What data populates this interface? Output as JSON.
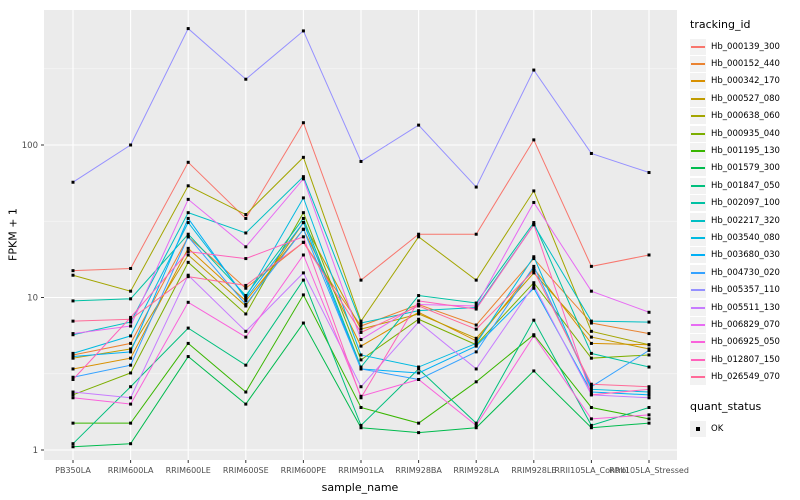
{
  "chart_data": {
    "type": "line",
    "title": "",
    "xlabel": "sample_name",
    "ylabel": "FPKM + 1",
    "yscale": "log10",
    "yticks": [
      1,
      10,
      100
    ],
    "ytick_labels": [
      "1",
      "10",
      "100"
    ],
    "ylim": [
      1,
      775
    ],
    "grid": "on",
    "legend_position": "right",
    "categories": [
      "PB350LA",
      "RRIM600LA",
      "RRIM600LE",
      "RRIM600SE",
      "RRIM600PE",
      "RRIM901LA",
      "RRIM928BA",
      "RRIM928LA",
      "RRIM928LE",
      "RRII105LA_Control",
      "RRII105LA_Stressed"
    ],
    "series": [
      {
        "name": "Hb_000139_300",
        "color": "#F8766D",
        "values": [
          15,
          15.5,
          77,
          33,
          140,
          13,
          26,
          26,
          108,
          16,
          19
        ]
      },
      {
        "name": "Hb_000152_440",
        "color": "#EA8331",
        "values": [
          4.2,
          5.0,
          25,
          11.5,
          23,
          6.5,
          9.0,
          6.6,
          18,
          6.8,
          5.8
        ]
      },
      {
        "name": "Hb_000342_170",
        "color": "#D89000",
        "values": [
          3.4,
          4.0,
          21,
          9.5,
          28,
          4.8,
          8.0,
          5.2,
          15.5,
          5.0,
          4.9
        ]
      },
      {
        "name": "Hb_000527_080",
        "color": "#C09B00",
        "values": [
          4.0,
          4.6,
          19,
          8.8,
          31,
          6.2,
          7.8,
          5.4,
          14.5,
          5.5,
          4.6
        ]
      },
      {
        "name": "Hb_000638_060",
        "color": "#A3A500",
        "values": [
          14,
          11,
          54,
          35,
          83,
          7.0,
          25,
          13,
          50,
          6.0,
          4.9
        ]
      },
      {
        "name": "Hb_000935_040",
        "color": "#7CAE00",
        "values": [
          2.3,
          3.2,
          17,
          7.8,
          36,
          3.9,
          7.2,
          4.9,
          12.5,
          4.0,
          4.2
        ]
      },
      {
        "name": "Hb_001195_130",
        "color": "#39B600",
        "values": [
          1.5,
          1.5,
          5.0,
          2.4,
          10.4,
          1.9,
          1.5,
          2.8,
          5.7,
          1.9,
          1.6
        ]
      },
      {
        "name": "Hb_001579_300",
        "color": "#00BB4E",
        "values": [
          1.05,
          1.1,
          4.1,
          2.0,
          6.8,
          1.4,
          1.3,
          1.4,
          3.3,
          1.4,
          1.5
        ]
      },
      {
        "name": "Hb_001847_050",
        "color": "#00BF7D",
        "values": [
          1.1,
          2.6,
          6.3,
          3.6,
          13,
          1.45,
          3.4,
          1.5,
          7.1,
          1.45,
          1.9
        ]
      },
      {
        "name": "Hb_002097_100",
        "color": "#00C1A3",
        "values": [
          9.5,
          9.8,
          26,
          10.3,
          33,
          3.5,
          10.3,
          9.2,
          31,
          4.3,
          3.5
        ]
      },
      {
        "name": "Hb_002217_320",
        "color": "#00BFC4",
        "values": [
          5.7,
          6.9,
          36,
          26.5,
          62,
          6.8,
          8.2,
          8.6,
          30,
          7.0,
          6.9
        ]
      },
      {
        "name": "Hb_003540_080",
        "color": "#00BAE0",
        "values": [
          4.3,
          5.6,
          31,
          10,
          45,
          4.2,
          3.5,
          5.0,
          18.5,
          2.5,
          2.4
        ]
      },
      {
        "name": "Hb_003680_030",
        "color": "#00B0F6",
        "values": [
          4.1,
          4.4,
          33,
          9.8,
          31,
          3.4,
          3.2,
          4.8,
          11.5,
          2.4,
          2.3
        ]
      },
      {
        "name": "Hb_004730_020",
        "color": "#35A2FF",
        "values": [
          3.0,
          3.6,
          25,
          9.0,
          28,
          3.4,
          2.9,
          4.4,
          16,
          2.6,
          4.5
        ]
      },
      {
        "name": "Hb_005357_110",
        "color": "#9590FF",
        "values": [
          57,
          100,
          580,
          270,
          560,
          78,
          135,
          53,
          310,
          88,
          66
        ]
      },
      {
        "name": "Hb_005511_130",
        "color": "#C77CFF",
        "values": [
          2.4,
          2.2,
          14,
          6.0,
          14.5,
          2.6,
          6.9,
          3.4,
          12,
          2.3,
          2.2
        ]
      },
      {
        "name": "Hb_006829_070",
        "color": "#E76BF3",
        "values": [
          5.8,
          6.5,
          44,
          21.5,
          60,
          5.3,
          9.0,
          8.8,
          42,
          11,
          8.0
        ]
      },
      {
        "name": "Hb_006925_050",
        "color": "#FA62DB",
        "values": [
          2.2,
          2.0,
          9.3,
          5.5,
          19,
          2.25,
          2.9,
          1.45,
          5.6,
          1.6,
          1.7
        ]
      },
      {
        "name": "Hb_012807_150",
        "color": "#FF62BC",
        "values": [
          2.9,
          7.4,
          20,
          18,
          25,
          2.2,
          9.5,
          8.4,
          30,
          2.3,
          2.5
        ]
      },
      {
        "name": "Hb_026549_070",
        "color": "#FF6A98",
        "values": [
          7.0,
          7.2,
          13.7,
          12,
          23,
          5.9,
          8.8,
          6.2,
          15,
          2.7,
          2.6
        ]
      }
    ],
    "legend": {
      "series_title": "tracking_id",
      "shape_title": "quant_status",
      "shape_label": "OK"
    },
    "marker": {
      "shape": "square",
      "color": "#000000",
      "size": 3
    }
  },
  "colors": {
    "panel_bg": "#EBEBEB",
    "grid_major": "#FFFFFF",
    "grid_minor": "#F6F6F6",
    "tick_mark": "#333333",
    "tick_text": "#4D4D4D",
    "axis_text": "#000000",
    "legend_key_bg": "#F2F2F2"
  }
}
